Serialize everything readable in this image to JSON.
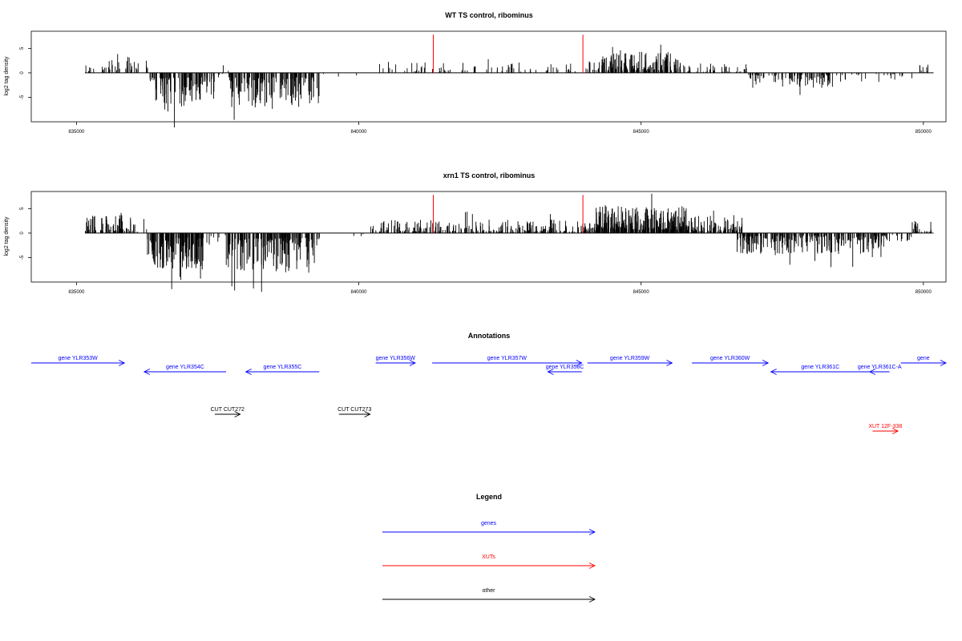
{
  "chart_data": [
    {
      "type": "bar",
      "title": "WT TS control, ribominus",
      "ylabel": "log2 tag density",
      "xlim": [
        834200,
        850400
      ],
      "ylim": [
        -10,
        8.5
      ],
      "x_ticks": [
        835000,
        840000,
        845000,
        850000
      ],
      "x_tick_labels": [
        "835000",
        "840000",
        "845000",
        "850000"
      ],
      "y_ticks": [
        -5,
        0,
        5
      ],
      "y_tick_labels": [
        "-5",
        "0",
        "5"
      ],
      "baseline": {
        "from": 835150,
        "to": 850180
      },
      "series": [
        {
          "color": "#000000",
          "segments": [
            {
              "from": 835150,
              "to": 835250,
              "amplitude": 1.5,
              "density": 5
            },
            {
              "from": 835300,
              "to": 836000,
              "amplitude": 3.5,
              "density": 25
            },
            {
              "from": 836000,
              "to": 836300,
              "amplitude": 2.0,
              "density": 8
            },
            {
              "from": 836300,
              "to": 837200,
              "amplitude": -6.5,
              "density": 90
            },
            {
              "from": 837200,
              "to": 837450,
              "amplitude": -4.5,
              "density": 20
            },
            {
              "from": 837500,
              "to": 837600,
              "amplitude": -1.0,
              "density": 3
            },
            {
              "from": 837600,
              "to": 837700,
              "amplitude": 2.0,
              "density": 2
            },
            {
              "from": 837700,
              "to": 839300,
              "amplitude": -6.0,
              "density": 140
            },
            {
              "from": 839300,
              "to": 840300,
              "amplitude": -1.0,
              "density": 3
            },
            {
              "from": 840300,
              "to": 841200,
              "amplitude": 1.8,
              "density": 18
            },
            {
              "from": 841300,
              "to": 843900,
              "amplitude": 1.8,
              "density": 55
            },
            {
              "from": 844000,
              "to": 844300,
              "amplitude": 2.0,
              "density": 12
            },
            {
              "from": 844300,
              "to": 845700,
              "amplitude": 3.5,
              "density": 160
            },
            {
              "from": 845700,
              "to": 846900,
              "amplitude": 1.6,
              "density": 40
            },
            {
              "from": 846900,
              "to": 848500,
              "amplitude": -2.5,
              "density": 90
            },
            {
              "from": 848500,
              "to": 849800,
              "amplitude": -1.5,
              "density": 25
            },
            {
              "from": 849800,
              "to": 850150,
              "amplitude": 1.5,
              "density": 8
            }
          ]
        },
        {
          "color": "#ff0000",
          "spikes": [
            {
              "x": 841320,
              "value": 7.8
            },
            {
              "x": 843970,
              "value": 7.8
            }
          ]
        }
      ]
    },
    {
      "type": "bar",
      "title": "xrn1 TS control, ribominus",
      "ylabel": "log2 tag density",
      "xlim": [
        834200,
        850400
      ],
      "ylim": [
        -10,
        8.5
      ],
      "x_ticks": [
        835000,
        840000,
        845000,
        850000
      ],
      "x_tick_labels": [
        "835000",
        "840000",
        "845000",
        "850000"
      ],
      "y_ticks": [
        -5,
        0,
        5
      ],
      "y_tick_labels": [
        "-5",
        "0",
        "5"
      ],
      "baseline": {
        "from": 835150,
        "to": 850180
      },
      "series": [
        {
          "color": "#000000",
          "segments": [
            {
              "from": 835150,
              "to": 836000,
              "amplitude": 3.0,
              "density": 70
            },
            {
              "from": 836000,
              "to": 836250,
              "amplitude": 1.5,
              "density": 6
            },
            {
              "from": 836250,
              "to": 837250,
              "amplitude": -6.0,
              "density": 140
            },
            {
              "from": 837250,
              "to": 837650,
              "amplitude": -2.0,
              "density": 8
            },
            {
              "from": 837650,
              "to": 839300,
              "amplitude": -6.5,
              "density": 170
            },
            {
              "from": 839300,
              "to": 840200,
              "amplitude": -1.5,
              "density": 4
            },
            {
              "from": 840200,
              "to": 844200,
              "amplitude": 2.2,
              "density": 260
            },
            {
              "from": 844200,
              "to": 845800,
              "amplitude": 4.5,
              "density": 260
            },
            {
              "from": 845800,
              "to": 846800,
              "amplitude": 3.0,
              "density": 90
            },
            {
              "from": 846700,
              "to": 849300,
              "amplitude": -3.5,
              "density": 260
            },
            {
              "from": 849300,
              "to": 849800,
              "amplitude": -1.5,
              "density": 20
            },
            {
              "from": 849800,
              "to": 850150,
              "amplitude": 2.0,
              "density": 25
            }
          ]
        },
        {
          "color": "#ff0000",
          "spikes": [
            {
              "x": 841320,
              "value": 7.8
            },
            {
              "x": 843970,
              "value": 7.8
            }
          ]
        }
      ]
    }
  ],
  "annotations": {
    "title": "Annotations",
    "xlim": [
      834200,
      850400
    ],
    "features": [
      {
        "label": "gene YLR353W",
        "start": 834200,
        "end": 835850,
        "strand": "+",
        "row": 1,
        "kind": "gene"
      },
      {
        "label": "gene YLR354C",
        "start": 836200,
        "end": 837650,
        "strand": "-",
        "row": 2,
        "kind": "gene"
      },
      {
        "label": "gene YLR355C",
        "start": 838000,
        "end": 839300,
        "strand": "-",
        "row": 2,
        "kind": "gene"
      },
      {
        "label": "gene YLR356W",
        "start": 840300,
        "end": 841000,
        "strand": "+",
        "row": 1,
        "kind": "gene"
      },
      {
        "label": "gene YLR357W",
        "start": 841300,
        "end": 843950,
        "strand": "+",
        "row": 1,
        "kind": "gene"
      },
      {
        "label": "gene YLR358C",
        "start": 843350,
        "end": 843950,
        "strand": "-",
        "row": 2,
        "kind": "gene"
      },
      {
        "label": "gene YLR359W",
        "start": 844050,
        "end": 845550,
        "strand": "+",
        "row": 1,
        "kind": "gene"
      },
      {
        "label": "gene YLR360W",
        "start": 845900,
        "end": 847250,
        "strand": "+",
        "row": 1,
        "kind": "gene"
      },
      {
        "label": "gene YLR361C",
        "start": 847300,
        "end": 849050,
        "strand": "-",
        "row": 2,
        "kind": "gene"
      },
      {
        "label": "gene YLR361C-A",
        "start": 849050,
        "end": 849400,
        "strand": "-",
        "row": 2,
        "kind": "gene"
      },
      {
        "label": "gene",
        "start": 849600,
        "end": 850400,
        "strand": "+",
        "row": 1,
        "kind": "gene"
      },
      {
        "label": "CUT CUT272",
        "start": 837450,
        "end": 837900,
        "strand": "+",
        "row": 4,
        "kind": "other"
      },
      {
        "label": "CUT CUT273",
        "start": 839650,
        "end": 840200,
        "strand": "+",
        "row": 4,
        "kind": "other"
      },
      {
        "label": "XUT 12F-338",
        "start": 849100,
        "end": 849550,
        "strand": "+",
        "row": 5,
        "kind": "xut"
      }
    ]
  },
  "legend": {
    "title": "Legend",
    "items": [
      {
        "label": "genes",
        "color": "#0000ff"
      },
      {
        "label": "XUTs",
        "color": "#ff0000"
      },
      {
        "label": "other",
        "color": "#000000"
      }
    ]
  },
  "colors": {
    "gene": "#0000ff",
    "xut": "#ff0000",
    "other": "#000000"
  }
}
